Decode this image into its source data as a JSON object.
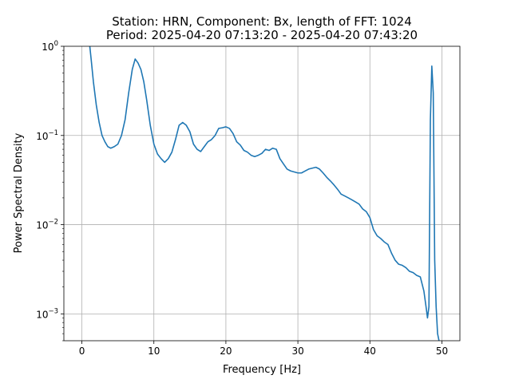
{
  "chart_data": {
    "type": "line",
    "title": [
      "Station: HRN, Component: Bx, length of FFT: 1024",
      "Period: 2025-04-20 07:13:20 - 2025-04-20 07:43:20"
    ],
    "xlabel": "Frequency [Hz]",
    "ylabel": "Power Spectral Density",
    "xlim": [
      -2.5,
      52.5
    ],
    "ylim": [
      0.0005,
      1
    ],
    "yscale": "log",
    "grid": true,
    "xticks": [
      {
        "value": 0,
        "label": "0"
      },
      {
        "value": 10,
        "label": "10"
      },
      {
        "value": 20,
        "label": "20"
      },
      {
        "value": 30,
        "label": "30"
      },
      {
        "value": 40,
        "label": "40"
      },
      {
        "value": 50,
        "label": "50"
      }
    ],
    "yticks": [
      {
        "value": 0.001,
        "base": "10",
        "exp": "−3"
      },
      {
        "value": 0.01,
        "base": "10",
        "exp": "−2"
      },
      {
        "value": 0.1,
        "base": "10",
        "exp": "−1"
      },
      {
        "value": 1,
        "base": "10",
        "exp": "0"
      }
    ],
    "series": [
      {
        "color": "#1f77b4",
        "x": [
          1.1,
          1.3,
          1.6,
          2.0,
          2.4,
          2.8,
          3.2,
          3.6,
          4.0,
          4.5,
          5.0,
          5.5,
          6.0,
          6.5,
          7.0,
          7.4,
          7.8,
          8.2,
          8.6,
          9.0,
          9.5,
          10.0,
          10.5,
          11.0,
          11.5,
          12.0,
          12.5,
          13.0,
          13.5,
          14.0,
          14.5,
          15.0,
          15.5,
          16.0,
          16.5,
          17.0,
          17.5,
          18.0,
          18.5,
          19.0,
          19.5,
          20.0,
          20.5,
          21.0,
          21.5,
          22.0,
          22.5,
          23.0,
          23.5,
          24.0,
          24.5,
          25.0,
          25.5,
          26.0,
          26.5,
          27.0,
          27.5,
          28.0,
          28.5,
          29.0,
          29.5,
          30.0,
          30.5,
          31.0,
          31.5,
          32.0,
          32.5,
          33.0,
          33.5,
          34.0,
          34.5,
          35.0,
          35.5,
          36.0,
          36.5,
          37.0,
          37.5,
          38.0,
          38.5,
          39.0,
          39.5,
          40.0,
          40.5,
          41.0,
          41.5,
          42.0,
          42.5,
          43.0,
          43.5,
          44.0,
          44.5,
          45.0,
          45.5,
          46.0,
          46.5,
          47.0,
          47.5,
          47.8,
          48.0,
          48.2,
          48.4,
          48.6,
          48.8,
          49.0,
          49.2,
          49.4,
          49.6
        ],
        "y": [
          1.0,
          0.7,
          0.4,
          0.22,
          0.14,
          0.1,
          0.085,
          0.075,
          0.072,
          0.075,
          0.08,
          0.1,
          0.15,
          0.3,
          0.55,
          0.72,
          0.65,
          0.55,
          0.4,
          0.25,
          0.13,
          0.08,
          0.062,
          0.055,
          0.05,
          0.055,
          0.065,
          0.09,
          0.13,
          0.14,
          0.13,
          0.11,
          0.08,
          0.07,
          0.066,
          0.075,
          0.085,
          0.09,
          0.1,
          0.12,
          0.122,
          0.125,
          0.12,
          0.105,
          0.085,
          0.078,
          0.068,
          0.065,
          0.06,
          0.058,
          0.06,
          0.063,
          0.07,
          0.068,
          0.072,
          0.07,
          0.055,
          0.048,
          0.042,
          0.04,
          0.039,
          0.038,
          0.038,
          0.04,
          0.042,
          0.043,
          0.044,
          0.042,
          0.038,
          0.034,
          0.031,
          0.028,
          0.025,
          0.022,
          0.021,
          0.02,
          0.019,
          0.018,
          0.017,
          0.015,
          0.014,
          0.012,
          0.0088,
          0.0075,
          0.007,
          0.0064,
          0.006,
          0.0048,
          0.004,
          0.0036,
          0.0035,
          0.0033,
          0.003,
          0.0029,
          0.0027,
          0.0026,
          0.0018,
          0.0012,
          0.0009,
          0.0012,
          0.15,
          0.6,
          0.3,
          0.004,
          0.0012,
          0.0006,
          0.0005
        ]
      }
    ]
  }
}
